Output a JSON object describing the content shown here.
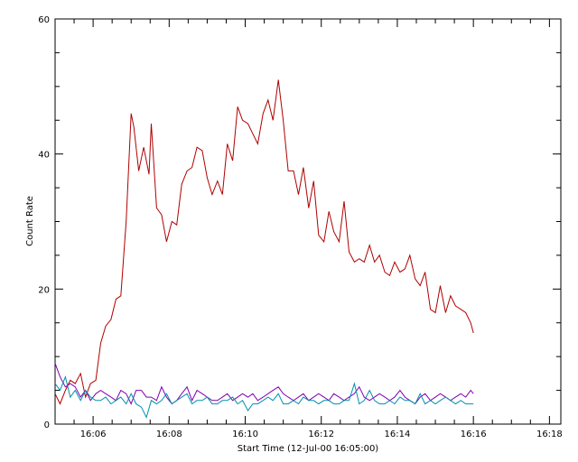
{
  "chart_data": {
    "type": "line",
    "xlabel": "Start Time (12-Jul-00 16:05:00)",
    "ylabel": "Count Rate",
    "x_unit": "minutes",
    "xlim": [
      0,
      13.3
    ],
    "ylim": [
      0,
      60
    ],
    "x_ticks": [
      {
        "value": 1,
        "label": "16:06"
      },
      {
        "value": 3,
        "label": "16:08"
      },
      {
        "value": 5,
        "label": "16:10"
      },
      {
        "value": 7,
        "label": "16:12"
      },
      {
        "value": 9,
        "label": "16:14"
      },
      {
        "value": 11,
        "label": "16:16"
      },
      {
        "value": 13,
        "label": "16:18"
      }
    ],
    "y_ticks": [
      {
        "value": 0,
        "label": "0"
      },
      {
        "value": 20,
        "label": "20"
      },
      {
        "value": 40,
        "label": "40"
      },
      {
        "value": 60,
        "label": "60"
      }
    ],
    "grid": false,
    "legend": "none",
    "series": [
      {
        "color": "#b00000",
        "x": [
          0.0,
          0.13,
          0.27,
          0.4,
          0.53,
          0.67,
          0.8,
          0.93,
          1.07,
          1.2,
          1.33,
          1.47,
          1.6,
          1.73,
          1.87,
          2.0,
          2.07,
          2.2,
          2.33,
          2.47,
          2.53,
          2.67,
          2.8,
          2.93,
          3.07,
          3.2,
          3.33,
          3.47,
          3.6,
          3.73,
          3.87,
          4.0,
          4.13,
          4.27,
          4.4,
          4.53,
          4.67,
          4.8,
          4.93,
          5.07,
          5.2,
          5.33,
          5.47,
          5.6,
          5.73,
          5.87,
          6.0,
          6.13,
          6.27,
          6.4,
          6.53,
          6.67,
          6.8,
          6.93,
          7.07,
          7.2,
          7.33,
          7.47,
          7.6,
          7.73,
          7.87,
          8.0,
          8.13,
          8.27,
          8.4,
          8.53,
          8.67,
          8.8,
          8.93,
          9.07,
          9.2,
          9.33,
          9.47,
          9.6,
          9.73,
          9.87,
          10.0,
          10.13,
          10.27,
          10.4,
          10.53,
          10.67,
          10.8,
          10.93,
          11.0
        ],
        "values": [
          4.5,
          3.0,
          5.0,
          6.5,
          6.0,
          7.5,
          4.0,
          6.0,
          6.5,
          12.0,
          14.5,
          15.5,
          18.5,
          19.0,
          30.0,
          46.0,
          44.0,
          37.5,
          41.0,
          37.0,
          44.5,
          32.0,
          31.0,
          27.0,
          30.0,
          29.5,
          35.5,
          37.5,
          38.0,
          41.0,
          40.5,
          36.5,
          34.0,
          36.0,
          34.0,
          41.5,
          39.0,
          47.0,
          45.0,
          44.5,
          43.0,
          41.5,
          46.0,
          48.0,
          45.0,
          51.0,
          45.0,
          37.5,
          37.5,
          34.0,
          38.0,
          32.0,
          36.0,
          28.0,
          27.0,
          31.5,
          28.5,
          27.0,
          33.0,
          25.5,
          24.0,
          24.5,
          24.0,
          26.5,
          24.0,
          25.0,
          22.5,
          22.0,
          24.0,
          22.5,
          23.0,
          25.0,
          21.5,
          20.5,
          22.5,
          17.0,
          16.5,
          20.5,
          16.5,
          19.0,
          17.5,
          17.0,
          16.5,
          15.0,
          13.5
        ]
      },
      {
        "color": "#8000b0",
        "x": [
          0.0,
          0.13,
          0.27,
          0.4,
          0.53,
          0.67,
          0.8,
          0.93,
          1.07,
          1.2,
          1.33,
          1.47,
          1.6,
          1.73,
          1.87,
          2.0,
          2.13,
          2.27,
          2.4,
          2.53,
          2.67,
          2.8,
          2.93,
          3.07,
          3.2,
          3.33,
          3.47,
          3.6,
          3.73,
          3.87,
          4.0,
          4.13,
          4.27,
          4.4,
          4.53,
          4.67,
          4.8,
          4.93,
          5.07,
          5.2,
          5.33,
          5.47,
          5.6,
          5.73,
          5.87,
          6.0,
          6.13,
          6.27,
          6.4,
          6.53,
          6.67,
          6.8,
          6.93,
          7.07,
          7.2,
          7.33,
          7.47,
          7.6,
          7.73,
          7.87,
          8.0,
          8.13,
          8.27,
          8.4,
          8.53,
          8.67,
          8.8,
          8.93,
          9.07,
          9.2,
          9.33,
          9.47,
          9.6,
          9.73,
          9.87,
          10.0,
          10.13,
          10.27,
          10.4,
          10.53,
          10.67,
          10.8,
          10.93,
          11.0
        ],
        "values": [
          9.0,
          7.0,
          5.5,
          6.0,
          5.5,
          4.0,
          5.0,
          3.5,
          4.5,
          5.0,
          4.5,
          4.0,
          3.5,
          5.0,
          4.5,
          3.0,
          5.0,
          5.0,
          4.0,
          4.0,
          3.5,
          5.5,
          4.0,
          3.0,
          3.5,
          4.5,
          5.5,
          3.5,
          5.0,
          4.5,
          4.0,
          3.5,
          3.5,
          4.0,
          4.5,
          3.5,
          4.0,
          4.5,
          4.0,
          4.5,
          3.5,
          4.0,
          4.5,
          5.0,
          5.5,
          4.5,
          4.0,
          3.5,
          4.0,
          4.5,
          3.5,
          4.0,
          4.5,
          4.0,
          3.5,
          4.5,
          4.0,
          3.5,
          4.0,
          4.5,
          5.5,
          4.0,
          3.5,
          4.0,
          4.5,
          4.0,
          3.5,
          4.0,
          5.0,
          4.0,
          3.5,
          3.0,
          4.0,
          4.5,
          3.5,
          4.0,
          4.5,
          4.0,
          3.5,
          4.0,
          4.5,
          4.0,
          5.0,
          4.5
        ]
      },
      {
        "color": "#0090b0",
        "x": [
          0.0,
          0.13,
          0.27,
          0.4,
          0.53,
          0.67,
          0.8,
          0.93,
          1.07,
          1.2,
          1.33,
          1.47,
          1.6,
          1.73,
          1.87,
          2.0,
          2.13,
          2.27,
          2.4,
          2.53,
          2.67,
          2.8,
          2.93,
          3.07,
          3.2,
          3.33,
          3.47,
          3.6,
          3.73,
          3.87,
          4.0,
          4.13,
          4.27,
          4.4,
          4.53,
          4.67,
          4.8,
          4.93,
          5.07,
          5.2,
          5.33,
          5.47,
          5.6,
          5.73,
          5.87,
          6.0,
          6.13,
          6.27,
          6.4,
          6.53,
          6.67,
          6.8,
          6.93,
          7.07,
          7.2,
          7.33,
          7.47,
          7.6,
          7.73,
          7.87,
          8.0,
          8.13,
          8.27,
          8.4,
          8.53,
          8.67,
          8.8,
          8.93,
          9.07,
          9.2,
          9.33,
          9.47,
          9.6,
          9.73,
          9.87,
          10.0,
          10.13,
          10.27,
          10.4,
          10.53,
          10.67,
          10.8,
          10.93,
          11.0
        ],
        "values": [
          6.0,
          5.0,
          7.0,
          4.0,
          5.0,
          3.5,
          5.0,
          4.0,
          3.5,
          3.5,
          4.0,
          3.0,
          3.5,
          4.0,
          3.0,
          4.5,
          3.0,
          2.5,
          1.0,
          3.5,
          3.0,
          3.5,
          4.5,
          3.0,
          3.5,
          4.0,
          4.5,
          3.0,
          3.5,
          3.5,
          4.0,
          3.0,
          3.0,
          3.5,
          3.5,
          4.0,
          3.0,
          3.5,
          2.0,
          3.0,
          3.0,
          3.5,
          4.0,
          3.5,
          4.5,
          3.0,
          3.0,
          3.5,
          3.0,
          4.0,
          3.5,
          3.5,
          3.0,
          3.5,
          3.5,
          3.0,
          3.0,
          3.5,
          3.5,
          6.0,
          3.0,
          3.5,
          5.0,
          3.5,
          3.0,
          3.0,
          3.5,
          3.0,
          4.0,
          3.5,
          3.5,
          3.0,
          4.5,
          3.0,
          3.5,
          3.0,
          3.5,
          4.0,
          3.5,
          3.0,
          3.5,
          3.0,
          3.0,
          3.0
        ]
      }
    ]
  }
}
